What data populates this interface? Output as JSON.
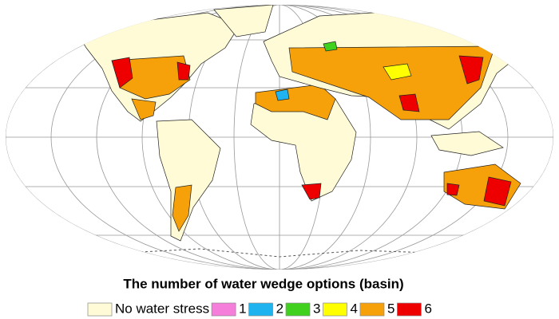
{
  "legend": {
    "title": "The number of water wedge options (basin)",
    "items": [
      {
        "label": "No water stress",
        "color": "#fffbd6"
      },
      {
        "label": "1",
        "color": "#f57edb"
      },
      {
        "label": "2",
        "color": "#1fb4ef"
      },
      {
        "label": "3",
        "color": "#40d11f"
      },
      {
        "label": "4",
        "color": "#ffff00"
      },
      {
        "label": "5",
        "color": "#f7a10a"
      },
      {
        "label": "6",
        "color": "#ee0000"
      }
    ]
  }
}
